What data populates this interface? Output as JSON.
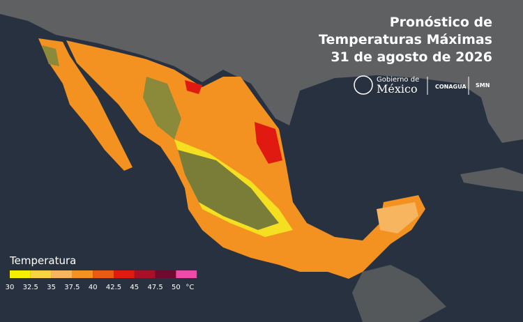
{
  "title": [
    "Pronóstico de",
    "Temperaturas Máximas",
    "31 de agosto de 2026"
  ],
  "logos": {
    "gobierno_top": "Gobierno de",
    "gobierno_bottom": "México",
    "conagua": "CONAGUA",
    "smn": "SMN"
  },
  "legend": {
    "title": "Temperatura",
    "unit": "°C",
    "items": [
      {
        "label": "30",
        "color": "#f4f000"
      },
      {
        "label": "32.5",
        "color": "#f8d240"
      },
      {
        "label": "35",
        "color": "#f7b560"
      },
      {
        "label": "37.5",
        "color": "#f39220"
      },
      {
        "label": "40",
        "color": "#ea5a12"
      },
      {
        "label": "42.5",
        "color": "#e01a10"
      },
      {
        "label": "45",
        "color": "#a81028"
      },
      {
        "label": "47.5",
        "color": "#6e0a30"
      },
      {
        "label": "50",
        "color": "#ee4aa8"
      }
    ]
  }
}
